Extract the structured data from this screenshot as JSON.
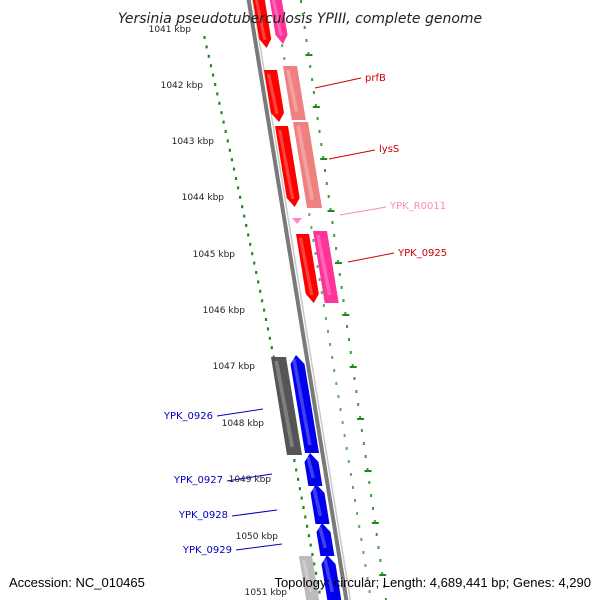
{
  "title": "Yersinia pseudotuberculosis YPIII, complete genome",
  "footer": {
    "accession": "Accession: NC_010465",
    "topology": "Topology: circular; Length: 4,689,441 bp; Genes: 4,290"
  },
  "colors": {
    "axis_dots": "#1a8a1a",
    "backbone": "#888888",
    "strand_plus_red": "#ff0000",
    "strand_pink": "#ff3399",
    "salmon": "#f08080",
    "blue": "#0000ee",
    "dark_gray": "#555555",
    "light_gray": "#bbbbbb"
  },
  "kbp_ticks": [
    "1041 kbp",
    "1042 kbp",
    "1043 kbp",
    "1044 kbp",
    "1045 kbp",
    "1046 kbp",
    "1047 kbp",
    "1048 kbp",
    "1049 kbp",
    "1050 kbp",
    "1051 kbp"
  ],
  "gene_labels": [
    {
      "text": "prfB",
      "color": "#cc0000"
    },
    {
      "text": "lysS",
      "color": "#cc0000"
    },
    {
      "text": "YPK_R0011",
      "color": "#ff88bb"
    },
    {
      "text": "YPK_0925",
      "color": "#cc0000"
    },
    {
      "text": "YPK_0926",
      "color": "#0000bb"
    },
    {
      "text": "YPK_0927",
      "color": "#0000bb"
    },
    {
      "text": "YPK_0928",
      "color": "#0000bb"
    },
    {
      "text": "YPK_0929",
      "color": "#0000bb"
    }
  ]
}
